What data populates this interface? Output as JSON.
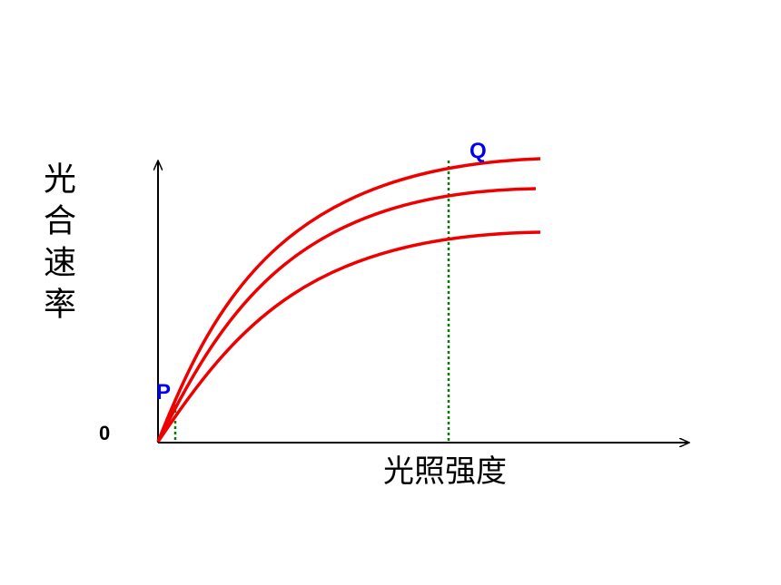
{
  "y_axis_label": "光合速率",
  "x_axis_label": "光照强度",
  "origin_label": "0",
  "points": [
    {
      "label": "P"
    },
    {
      "label": "Q"
    }
  ]
}
